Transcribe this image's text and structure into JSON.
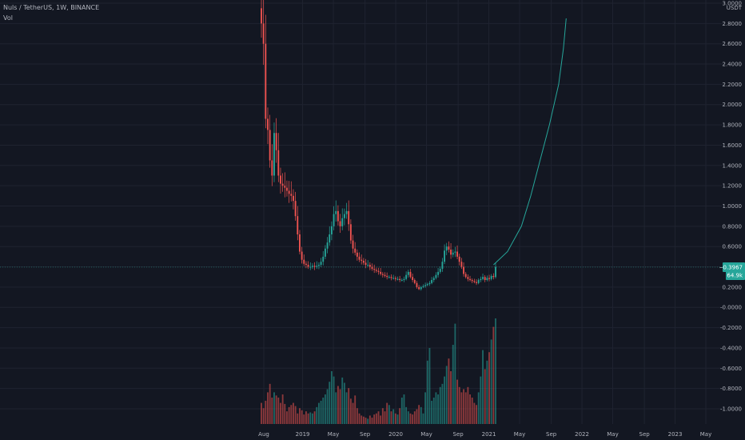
{
  "header": {
    "symbol_line": "Nuls / TetherUS, 1W, BINANCE",
    "indicator": "Vol"
  },
  "price_axis": {
    "currency": "USDT",
    "labels": [
      "3.0000",
      "2.8000",
      "2.6000",
      "2.4000",
      "2.2000",
      "2.0000",
      "1.8000",
      "1.6000",
      "1.4000",
      "1.2000",
      "1.0000",
      "0.8000",
      "0.6000",
      "0.2000",
      "-0.0000",
      "-0.2000",
      "-0.4000",
      "-0.6000",
      "-0.8000",
      "-1.0000"
    ]
  },
  "time_axis": {
    "labels": [
      "Aug",
      "2019",
      "May",
      "Sep",
      "2020",
      "May",
      "Sep",
      "2021",
      "May",
      "Sep",
      "2022",
      "May",
      "Sep",
      "2023",
      "May"
    ]
  },
  "tags": {
    "last_price": "0.3967",
    "volume": "64.9k"
  },
  "colors": {
    "background": "#131722",
    "up": "#26a69a",
    "down": "#ef5350",
    "projection": "#26a69a",
    "grid": "#1f2330"
  },
  "chart_data": {
    "type": "candlestick",
    "title": "Nuls / TetherUS, 1W, BINANCE",
    "ylabel": "USDT",
    "ylim": [
      -1.15,
      3.0
    ],
    "x_start": "2018-08",
    "x_end": "2023-05",
    "last_price": 0.3967,
    "grid": true,
    "legend": "none",
    "close_series": [
      2.8,
      2.6,
      1.86,
      1.75,
      1.45,
      1.3,
      1.72,
      1.55,
      1.3,
      1.22,
      1.2,
      1.18,
      1.15,
      1.12,
      1.1,
      1.05,
      0.9,
      0.72,
      0.55,
      0.47,
      0.43,
      0.42,
      0.4,
      0.4,
      0.41,
      0.4,
      0.41,
      0.42,
      0.45,
      0.5,
      0.58,
      0.64,
      0.72,
      0.8,
      0.92,
      0.95,
      0.85,
      0.8,
      0.88,
      0.92,
      0.95,
      0.82,
      0.66,
      0.58,
      0.54,
      0.5,
      0.47,
      0.46,
      0.44,
      0.42,
      0.42,
      0.4,
      0.38,
      0.37,
      0.36,
      0.35,
      0.33,
      0.32,
      0.31,
      0.3,
      0.3,
      0.29,
      0.29,
      0.28,
      0.28,
      0.27,
      0.27,
      0.28,
      0.32,
      0.35,
      0.3,
      0.27,
      0.24,
      0.2,
      0.18,
      0.2,
      0.21,
      0.22,
      0.23,
      0.24,
      0.27,
      0.29,
      0.32,
      0.35,
      0.38,
      0.45,
      0.56,
      0.6,
      0.57,
      0.52,
      0.54,
      0.55,
      0.5,
      0.45,
      0.4,
      0.33,
      0.3,
      0.28,
      0.27,
      0.26,
      0.25,
      0.24,
      0.27,
      0.28,
      0.3,
      0.27,
      0.29,
      0.28,
      0.31,
      0.3,
      0.4
    ],
    "volume_relative": [
      0.2,
      0.15,
      0.22,
      0.3,
      0.38,
      0.25,
      0.3,
      0.27,
      0.25,
      0.2,
      0.28,
      0.19,
      0.12,
      0.16,
      0.18,
      0.2,
      0.17,
      0.1,
      0.15,
      0.13,
      0.09,
      0.12,
      0.1,
      0.11,
      0.1,
      0.12,
      0.16,
      0.2,
      0.22,
      0.25,
      0.28,
      0.33,
      0.4,
      0.5,
      0.45,
      0.3,
      0.36,
      0.33,
      0.44,
      0.39,
      0.3,
      0.34,
      0.24,
      0.2,
      0.27,
      0.15,
      0.1,
      0.08,
      0.07,
      0.06,
      0.05,
      0.08,
      0.06,
      0.09,
      0.1,
      0.12,
      0.08,
      0.15,
      0.12,
      0.2,
      0.18,
      0.12,
      0.14,
      0.1,
      0.09,
      0.15,
      0.25,
      0.28,
      0.16,
      0.12,
      0.1,
      0.09,
      0.12,
      0.14,
      0.18,
      0.16,
      0.1,
      0.3,
      0.6,
      0.72,
      0.22,
      0.25,
      0.3,
      0.28,
      0.35,
      0.38,
      0.45,
      0.55,
      0.62,
      0.5,
      0.75,
      0.95,
      0.42,
      0.35,
      0.3,
      0.33,
      0.3,
      0.35,
      0.28,
      0.25,
      0.2,
      0.18,
      0.3,
      0.45,
      0.7,
      0.52,
      0.6,
      0.68,
      0.8,
      0.92,
      1.0
    ],
    "projection": [
      [
        2021.05,
        0.42
      ],
      [
        2021.2,
        0.55
      ],
      [
        2021.35,
        0.8
      ],
      [
        2021.45,
        1.1
      ],
      [
        2021.55,
        1.45
      ],
      [
        2021.65,
        1.8
      ],
      [
        2021.75,
        2.2
      ],
      [
        2021.8,
        2.55
      ],
      [
        2021.83,
        2.85
      ]
    ]
  }
}
